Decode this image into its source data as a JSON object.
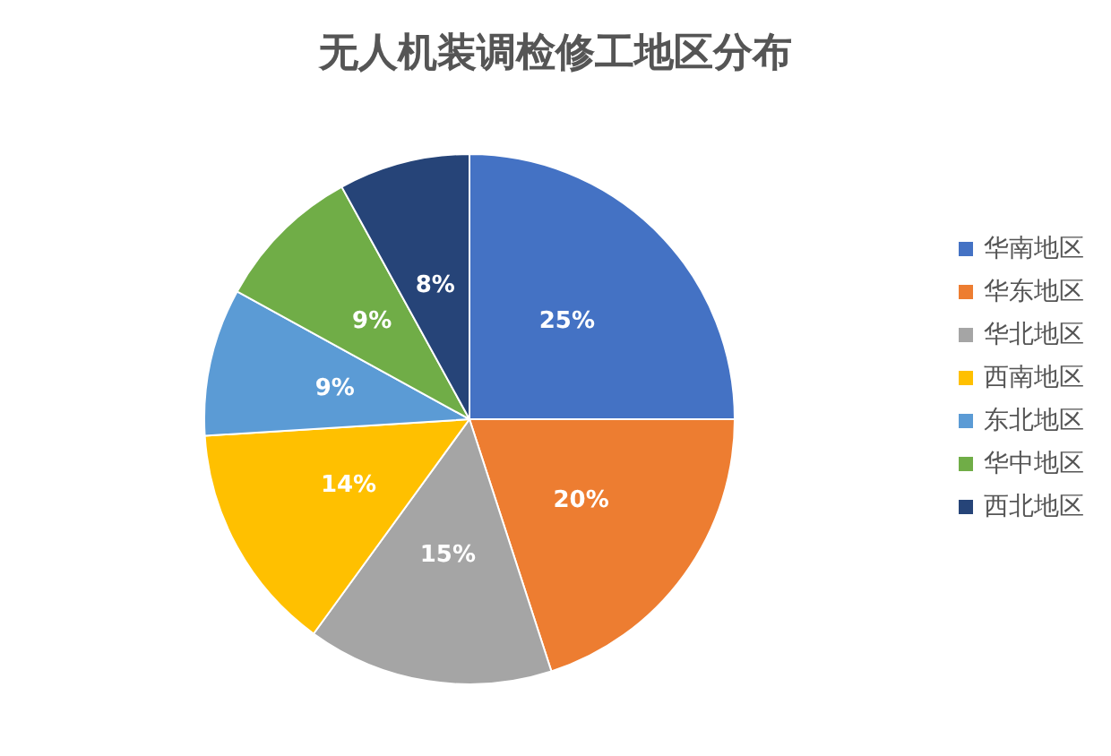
{
  "chart_data": {
    "type": "pie",
    "title": "无人机装调检修工地区分布",
    "categories": [
      "华南地区",
      "华东地区",
      "华北地区",
      "西南地区",
      "东北地区",
      "华中地区",
      "西北地区"
    ],
    "values": [
      25,
      20,
      15,
      14,
      9,
      9,
      8
    ],
    "value_labels": [
      "25%",
      "20%",
      "15%",
      "14%",
      "9%",
      "9%",
      "8%"
    ],
    "colors": [
      "#4472c4",
      "#ed7d31",
      "#a5a5a5",
      "#ffc000",
      "#5b9bd5",
      "#70ad47",
      "#264478"
    ],
    "legend": "right"
  }
}
